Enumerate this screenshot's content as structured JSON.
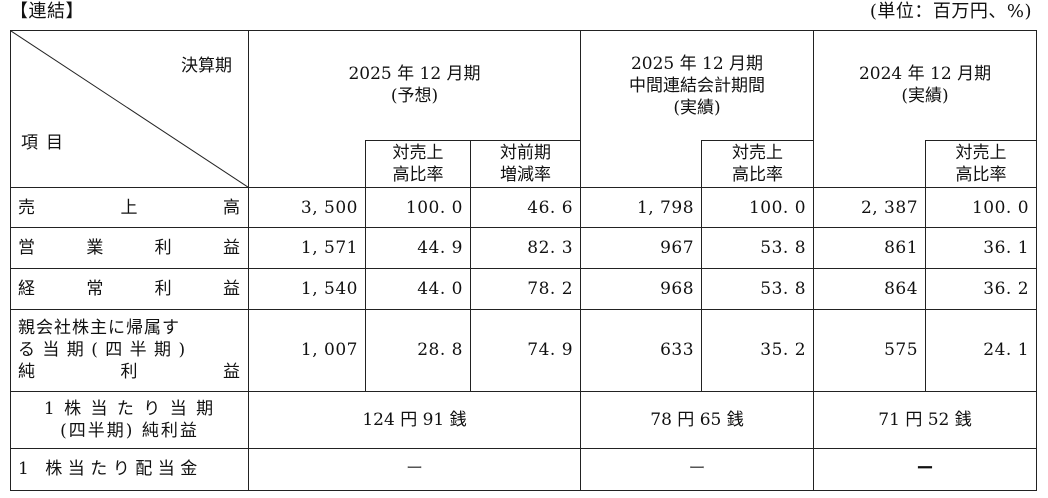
{
  "caption_left": "【連結】",
  "caption_right": "(単位：百万円、%)",
  "corner_top": "決算期",
  "corner_bottom": "項目",
  "col_groups": [
    {
      "line1": "2025 年 12 月期",
      "line2": "(予想)",
      "line3": ""
    },
    {
      "line1": "2025 年 12 月期",
      "line2": "中間連結会計期間",
      "line3": "(実績)"
    },
    {
      "line1": "2024 年 12 月期",
      "line2": "(実績)",
      "line3": ""
    }
  ],
  "sub_headers": {
    "sales_ratio_l1": "対売上",
    "sales_ratio_l2": "高比率",
    "yoy_l1": "対前期",
    "yoy_l2": "増減率"
  },
  "rows": [
    {
      "label_chars": [
        "売",
        "上",
        "高"
      ],
      "values": [
        "3, 500",
        "100. 0",
        "46. 6",
        "1, 798",
        "100. 0",
        "2, 387",
        "100. 0"
      ]
    },
    {
      "label_chars": [
        "営",
        "業",
        "利",
        "益"
      ],
      "values": [
        "1, 571",
        "44. 9",
        "82. 3",
        "967",
        "53. 8",
        "861",
        "36. 1"
      ]
    },
    {
      "label_chars": [
        "経",
        "常",
        "利",
        "益"
      ],
      "values": [
        "1, 540",
        "44. 0",
        "78. 2",
        "968",
        "53. 8",
        "864",
        "36. 2"
      ]
    },
    {
      "label_lines": [
        "親会社株主に帰属す",
        "る 当 期 ( 四 半 期 )"
      ],
      "label_last_chars": [
        "純",
        "利",
        "益"
      ],
      "values": [
        "1, 007",
        "28. 8",
        "74. 9",
        "633",
        "35. 2",
        "575",
        "24. 1"
      ]
    }
  ],
  "eps": {
    "label_l1": "1 株 当 た り 当 期",
    "label_l2": "(四半期) 純利益",
    "values": [
      "124 円 91 銭",
      "78 円 65 銭",
      "71 円 52 銭"
    ]
  },
  "dividend": {
    "label": "1 株当たり配当金",
    "values": [
      "ー",
      "ー",
      "ー"
    ]
  }
}
